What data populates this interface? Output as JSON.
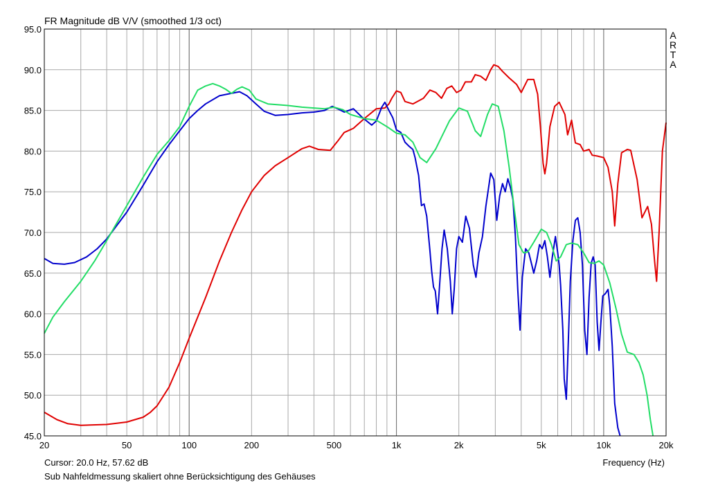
{
  "header": {
    "title": "FR Magnitude dB V/V (smoothed 1/3 oct)"
  },
  "footer": {
    "cursor": "Cursor: 20.0 Hz, 57.62 dB",
    "note": "Sub Nahfeldmessung skaliert ohne Berücksichtigung des Gehäuses",
    "x_unit": "Frequency (Hz)"
  },
  "brand": "ARTA",
  "chart_data": {
    "type": "line",
    "title": "FR Magnitude dB V/V (smoothed 1/3 oct)",
    "xlabel": "Frequency (Hz)",
    "ylabel": "",
    "x_scale": "log",
    "xlim": [
      20,
      20000
    ],
    "ylim": [
      45,
      95
    ],
    "grid": true,
    "x_ticks": [
      20,
      50,
      100,
      200,
      500,
      1000,
      2000,
      5000,
      10000,
      20000
    ],
    "x_tick_labels": [
      "20",
      "50",
      "100",
      "200",
      "500",
      "1k",
      "2k",
      "5k",
      "10k",
      "20k"
    ],
    "y_ticks": [
      45,
      50,
      55,
      60,
      65,
      70,
      75,
      80,
      85,
      90,
      95
    ],
    "y_tick_labels": [
      "45.0",
      "50.0",
      "55.0",
      "60.0",
      "65.0",
      "70.0",
      "75.0",
      "80.0",
      "85.0",
      "90.0",
      "95.0"
    ],
    "series": [
      {
        "color": "#e00000",
        "points": [
          [
            20,
            47.9
          ],
          [
            23,
            47
          ],
          [
            26,
            46.5
          ],
          [
            30,
            46.3
          ],
          [
            40,
            46.4
          ],
          [
            50,
            46.7
          ],
          [
            60,
            47.3
          ],
          [
            65,
            47.9
          ],
          [
            70,
            48.7
          ],
          [
            80,
            51
          ],
          [
            90,
            54
          ],
          [
            100,
            57
          ],
          [
            120,
            62
          ],
          [
            140,
            66.5
          ],
          [
            160,
            70
          ],
          [
            180,
            72.8
          ],
          [
            200,
            75
          ],
          [
            230,
            77
          ],
          [
            260,
            78.2
          ],
          [
            300,
            79.2
          ],
          [
            350,
            80.3
          ],
          [
            380,
            80.6
          ],
          [
            420,
            80.2
          ],
          [
            480,
            80.1
          ],
          [
            520,
            81.2
          ],
          [
            560,
            82.3
          ],
          [
            620,
            82.8
          ],
          [
            700,
            84
          ],
          [
            800,
            85.2
          ],
          [
            880,
            85.3
          ],
          [
            920,
            85.8
          ],
          [
            950,
            86.5
          ],
          [
            1000,
            87.4
          ],
          [
            1050,
            87.2
          ],
          [
            1100,
            86.1
          ],
          [
            1200,
            85.8
          ],
          [
            1350,
            86.5
          ],
          [
            1450,
            87.5
          ],
          [
            1550,
            87.2
          ],
          [
            1650,
            86.5
          ],
          [
            1750,
            87.7
          ],
          [
            1850,
            88
          ],
          [
            1950,
            87.2
          ],
          [
            2050,
            87.5
          ],
          [
            2150,
            88.5
          ],
          [
            2300,
            88.5
          ],
          [
            2400,
            89.4
          ],
          [
            2550,
            89.2
          ],
          [
            2700,
            88.7
          ],
          [
            2850,
            90
          ],
          [
            2950,
            90.6
          ],
          [
            3100,
            90.4
          ],
          [
            3250,
            89.8
          ],
          [
            3500,
            89
          ],
          [
            3800,
            88.2
          ],
          [
            4000,
            87.2
          ],
          [
            4300,
            88.8
          ],
          [
            4600,
            88.8
          ],
          [
            4800,
            87
          ],
          [
            4950,
            83
          ],
          [
            5100,
            78.5
          ],
          [
            5200,
            77.2
          ],
          [
            5300,
            78.5
          ],
          [
            5500,
            83
          ],
          [
            5800,
            85.5
          ],
          [
            6100,
            86
          ],
          [
            6500,
            84.5
          ],
          [
            6700,
            82
          ],
          [
            7000,
            83.8
          ],
          [
            7300,
            81
          ],
          [
            7700,
            80.8
          ],
          [
            8000,
            80
          ],
          [
            8500,
            80.2
          ],
          [
            8800,
            79.5
          ],
          [
            9300,
            79.4
          ],
          [
            10000,
            79.2
          ],
          [
            10500,
            78
          ],
          [
            11000,
            75
          ],
          [
            11300,
            70.8
          ],
          [
            11700,
            76
          ],
          [
            12200,
            79.8
          ],
          [
            13000,
            80.2
          ],
          [
            13500,
            80.1
          ],
          [
            14500,
            76.5
          ],
          [
            15300,
            71.8
          ],
          [
            16300,
            73.2
          ],
          [
            17000,
            71
          ],
          [
            17600,
            66.5
          ],
          [
            18000,
            64
          ],
          [
            18500,
            70
          ],
          [
            19200,
            80
          ],
          [
            20000,
            83.5
          ]
        ]
      },
      {
        "color": "#0000cc",
        "points": [
          [
            20,
            66.8
          ],
          [
            22,
            66.2
          ],
          [
            25,
            66.1
          ],
          [
            28,
            66.3
          ],
          [
            32,
            67
          ],
          [
            36,
            68
          ],
          [
            40,
            69.2
          ],
          [
            50,
            72.5
          ],
          [
            60,
            75.8
          ],
          [
            70,
            78.7
          ],
          [
            80,
            80.8
          ],
          [
            90,
            82.5
          ],
          [
            100,
            84
          ],
          [
            110,
            85
          ],
          [
            120,
            85.8
          ],
          [
            140,
            86.8
          ],
          [
            160,
            87.1
          ],
          [
            175,
            87.3
          ],
          [
            190,
            86.8
          ],
          [
            210,
            85.8
          ],
          [
            230,
            84.9
          ],
          [
            260,
            84.4
          ],
          [
            300,
            84.5
          ],
          [
            350,
            84.7
          ],
          [
            400,
            84.8
          ],
          [
            450,
            85
          ],
          [
            490,
            85.5
          ],
          [
            530,
            85.1
          ],
          [
            560,
            84.8
          ],
          [
            620,
            85.2
          ],
          [
            680,
            84.2
          ],
          [
            760,
            83.2
          ],
          [
            800,
            83.7
          ],
          [
            850,
            85.4
          ],
          [
            880,
            86
          ],
          [
            920,
            85
          ],
          [
            960,
            84.1
          ],
          [
            1000,
            82.6
          ],
          [
            1050,
            82.3
          ],
          [
            1100,
            81.1
          ],
          [
            1150,
            80.6
          ],
          [
            1200,
            80.2
          ],
          [
            1230,
            79.2
          ],
          [
            1280,
            77
          ],
          [
            1320,
            73.3
          ],
          [
            1360,
            73.5
          ],
          [
            1400,
            72
          ],
          [
            1450,
            67.8
          ],
          [
            1480,
            65.2
          ],
          [
            1510,
            63.3
          ],
          [
            1540,
            62.8
          ],
          [
            1580,
            60
          ],
          [
            1610,
            63
          ],
          [
            1660,
            68
          ],
          [
            1700,
            70.3
          ],
          [
            1760,
            68
          ],
          [
            1820,
            64
          ],
          [
            1860,
            60
          ],
          [
            1900,
            63
          ],
          [
            1950,
            68
          ],
          [
            2000,
            69.5
          ],
          [
            2080,
            68.8
          ],
          [
            2160,
            72
          ],
          [
            2250,
            70.5
          ],
          [
            2350,
            66
          ],
          [
            2420,
            64.5
          ],
          [
            2500,
            67.5
          ],
          [
            2600,
            69.5
          ],
          [
            2700,
            73.2
          ],
          [
            2850,
            77.3
          ],
          [
            2950,
            76.5
          ],
          [
            3050,
            71.5
          ],
          [
            3150,
            74.5
          ],
          [
            3250,
            76
          ],
          [
            3350,
            75
          ],
          [
            3450,
            76.6
          ],
          [
            3550,
            75.5
          ],
          [
            3650,
            74
          ],
          [
            3750,
            69.5
          ],
          [
            3850,
            63
          ],
          [
            3950,
            58
          ],
          [
            4050,
            64.5
          ],
          [
            4200,
            68
          ],
          [
            4350,
            67.5
          ],
          [
            4500,
            66
          ],
          [
            4600,
            65
          ],
          [
            4750,
            66.5
          ],
          [
            4900,
            68.5
          ],
          [
            5050,
            68
          ],
          [
            5200,
            69
          ],
          [
            5350,
            67
          ],
          [
            5500,
            64.5
          ],
          [
            5650,
            67
          ],
          [
            5850,
            69.5
          ],
          [
            6000,
            67.5
          ],
          [
            6100,
            66
          ],
          [
            6200,
            63.5
          ],
          [
            6350,
            58
          ],
          [
            6450,
            52
          ],
          [
            6600,
            49.5
          ],
          [
            6700,
            54
          ],
          [
            6900,
            64
          ],
          [
            7100,
            69
          ],
          [
            7300,
            71.5
          ],
          [
            7500,
            71.8
          ],
          [
            7700,
            70
          ],
          [
            7900,
            66
          ],
          [
            8100,
            58
          ],
          [
            8300,
            55
          ],
          [
            8500,
            62
          ],
          [
            8700,
            66.2
          ],
          [
            8900,
            67
          ],
          [
            9100,
            66
          ],
          [
            9300,
            59
          ],
          [
            9500,
            55.5
          ],
          [
            9700,
            59
          ],
          [
            9900,
            62.2
          ],
          [
            10200,
            62.5
          ],
          [
            10500,
            63
          ],
          [
            10700,
            61
          ],
          [
            11000,
            56
          ],
          [
            11300,
            49
          ],
          [
            11700,
            46
          ],
          [
            12000,
            45
          ]
        ]
      },
      {
        "color": "#22dd66",
        "points": [
          [
            20,
            57.6
          ],
          [
            22,
            59.6
          ],
          [
            25,
            61.5
          ],
          [
            30,
            64
          ],
          [
            35,
            66.5
          ],
          [
            40,
            69
          ],
          [
            50,
            73.3
          ],
          [
            60,
            76.8
          ],
          [
            70,
            79.6
          ],
          [
            80,
            81.3
          ],
          [
            90,
            83
          ],
          [
            100,
            85.5
          ],
          [
            110,
            87.5
          ],
          [
            120,
            88
          ],
          [
            130,
            88.3
          ],
          [
            140,
            88
          ],
          [
            150,
            87.6
          ],
          [
            160,
            87.1
          ],
          [
            170,
            87.6
          ],
          [
            180,
            87.9
          ],
          [
            195,
            87.5
          ],
          [
            210,
            86.4
          ],
          [
            240,
            85.8
          ],
          [
            300,
            85.6
          ],
          [
            350,
            85.4
          ],
          [
            400,
            85.3
          ],
          [
            450,
            85.2
          ],
          [
            500,
            85.4
          ],
          [
            550,
            85.1
          ],
          [
            600,
            84.5
          ],
          [
            700,
            84
          ],
          [
            800,
            83.8
          ],
          [
            900,
            83
          ],
          [
            1000,
            82.2
          ],
          [
            1100,
            82
          ],
          [
            1200,
            81.1
          ],
          [
            1300,
            79.2
          ],
          [
            1400,
            78.6
          ],
          [
            1550,
            80.3
          ],
          [
            1800,
            83.7
          ],
          [
            2000,
            85.3
          ],
          [
            2200,
            84.9
          ],
          [
            2400,
            82.5
          ],
          [
            2550,
            81.8
          ],
          [
            2750,
            84.5
          ],
          [
            2900,
            85.8
          ],
          [
            3100,
            85.5
          ],
          [
            3300,
            82.5
          ],
          [
            3500,
            78
          ],
          [
            3700,
            73
          ],
          [
            3900,
            68.5
          ],
          [
            4100,
            67.5
          ],
          [
            4300,
            67.6
          ],
          [
            4600,
            68.8
          ],
          [
            5000,
            70.4
          ],
          [
            5300,
            70
          ],
          [
            5600,
            68.5
          ],
          [
            5900,
            66.5
          ],
          [
            6200,
            67
          ],
          [
            6600,
            68.5
          ],
          [
            7000,
            68.7
          ],
          [
            7500,
            68.5
          ],
          [
            8000,
            67.5
          ],
          [
            8500,
            66.3
          ],
          [
            9000,
            66.2
          ],
          [
            9500,
            66.5
          ],
          [
            10000,
            66
          ],
          [
            10700,
            63.8
          ],
          [
            11500,
            60.5
          ],
          [
            12200,
            57.5
          ],
          [
            13000,
            55.3
          ],
          [
            14000,
            55
          ],
          [
            14800,
            54
          ],
          [
            15500,
            52.5
          ],
          [
            16200,
            50
          ],
          [
            16800,
            47
          ],
          [
            17300,
            45
          ]
        ]
      }
    ]
  }
}
